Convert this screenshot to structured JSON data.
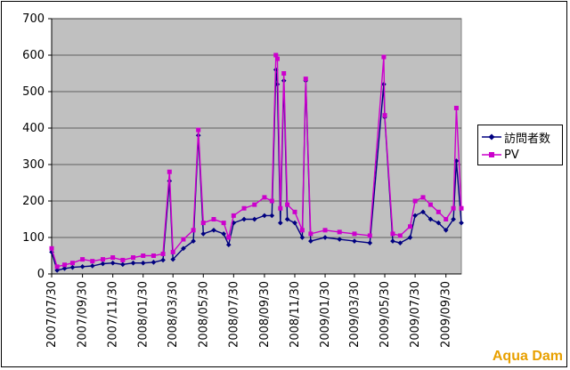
{
  "chart_data": {
    "type": "line",
    "title": "",
    "xlabel": "",
    "ylabel": "",
    "ylim": [
      0,
      700
    ],
    "yticks": [
      0,
      100,
      200,
      300,
      400,
      500,
      600,
      700
    ],
    "x_start": "2007/07/30",
    "x_end": "2009/10/31",
    "xticks": [
      "2007/07/30",
      "2007/09/30",
      "2007/11/30",
      "2008/01/30",
      "2008/03/30",
      "2008/05/30",
      "2008/07/30",
      "2008/09/30",
      "2008/11/30",
      "2009/01/30",
      "2009/03/30",
      "2009/05/30",
      "2009/07/30",
      "2009/09/30"
    ],
    "grid": true,
    "legend_position": "right",
    "plot_background": "#c0c0c0",
    "series": [
      {
        "name": "訪問者数",
        "color": "#000080",
        "marker": "diamond",
        "points": [
          [
            "2007/07/30",
            60
          ],
          [
            "2007/08/10",
            10
          ],
          [
            "2007/08/25",
            15
          ],
          [
            "2007/09/10",
            18
          ],
          [
            "2007/09/30",
            20
          ],
          [
            "2007/10/20",
            22
          ],
          [
            "2007/11/10",
            28
          ],
          [
            "2007/11/30",
            30
          ],
          [
            "2007/12/20",
            26
          ],
          [
            "2008/01/10",
            30
          ],
          [
            "2008/01/30",
            30
          ],
          [
            "2008/02/20",
            32
          ],
          [
            "2008/03/10",
            38
          ],
          [
            "2008/03/23",
            255
          ],
          [
            "2008/03/30",
            40
          ],
          [
            "2008/04/20",
            70
          ],
          [
            "2008/05/10",
            90
          ],
          [
            "2008/05/20",
            380
          ],
          [
            "2008/05/30",
            110
          ],
          [
            "2008/06/20",
            120
          ],
          [
            "2008/07/10",
            110
          ],
          [
            "2008/07/20",
            80
          ],
          [
            "2008/07/30",
            140
          ],
          [
            "2008/08/20",
            150
          ],
          [
            "2008/09/10",
            150
          ],
          [
            "2008/09/30",
            160
          ],
          [
            "2008/10/15",
            160
          ],
          [
            "2008/10/23",
            560
          ],
          [
            "2008/10/26",
            520
          ],
          [
            "2008/11/01",
            140
          ],
          [
            "2008/11/08",
            530
          ],
          [
            "2008/11/15",
            150
          ],
          [
            "2008/11/30",
            140
          ],
          [
            "2008/12/15",
            100
          ],
          [
            "2008/12/22",
            530
          ],
          [
            "2009/01/01",
            90
          ],
          [
            "2009/01/30",
            100
          ],
          [
            "2009/02/28",
            95
          ],
          [
            "2009/03/30",
            90
          ],
          [
            "2009/04/30",
            85
          ],
          [
            "2009/05/28",
            520
          ],
          [
            "2009/05/30",
            430
          ],
          [
            "2009/06/15",
            90
          ],
          [
            "2009/06/30",
            85
          ],
          [
            "2009/07/20",
            100
          ],
          [
            "2009/07/30",
            160
          ],
          [
            "2009/08/15",
            170
          ],
          [
            "2009/08/30",
            150
          ],
          [
            "2009/09/15",
            140
          ],
          [
            "2009/09/30",
            120
          ],
          [
            "2009/10/15",
            150
          ],
          [
            "2009/10/21",
            310
          ],
          [
            "2009/10/31",
            140
          ]
        ]
      },
      {
        "name": "PV",
        "color": "#cc00cc",
        "marker": "square",
        "points": [
          [
            "2007/07/30",
            70
          ],
          [
            "2007/08/10",
            20
          ],
          [
            "2007/08/25",
            25
          ],
          [
            "2007/09/10",
            30
          ],
          [
            "2007/09/30",
            40
          ],
          [
            "2007/10/20",
            35
          ],
          [
            "2007/11/10",
            40
          ],
          [
            "2007/11/30",
            45
          ],
          [
            "2007/12/20",
            38
          ],
          [
            "2008/01/10",
            45
          ],
          [
            "2008/01/30",
            50
          ],
          [
            "2008/02/20",
            50
          ],
          [
            "2008/03/10",
            55
          ],
          [
            "2008/03/23",
            280
          ],
          [
            "2008/03/30",
            60
          ],
          [
            "2008/04/20",
            95
          ],
          [
            "2008/05/10",
            120
          ],
          [
            "2008/05/20",
            395
          ],
          [
            "2008/05/30",
            140
          ],
          [
            "2008/06/20",
            150
          ],
          [
            "2008/07/10",
            140
          ],
          [
            "2008/07/20",
            100
          ],
          [
            "2008/07/30",
            160
          ],
          [
            "2008/08/20",
            180
          ],
          [
            "2008/09/10",
            190
          ],
          [
            "2008/09/30",
            210
          ],
          [
            "2008/10/15",
            200
          ],
          [
            "2008/10/23",
            600
          ],
          [
            "2008/10/26",
            590
          ],
          [
            "2008/11/01",
            180
          ],
          [
            "2008/11/08",
            550
          ],
          [
            "2008/11/15",
            190
          ],
          [
            "2008/11/30",
            170
          ],
          [
            "2008/12/15",
            120
          ],
          [
            "2008/12/22",
            535
          ],
          [
            "2009/01/01",
            110
          ],
          [
            "2009/01/30",
            120
          ],
          [
            "2009/02/28",
            115
          ],
          [
            "2009/03/30",
            110
          ],
          [
            "2009/04/30",
            105
          ],
          [
            "2009/05/28",
            595
          ],
          [
            "2009/05/30",
            435
          ],
          [
            "2009/06/15",
            110
          ],
          [
            "2009/06/30",
            105
          ],
          [
            "2009/07/20",
            130
          ],
          [
            "2009/07/30",
            200
          ],
          [
            "2009/08/15",
            210
          ],
          [
            "2009/08/30",
            190
          ],
          [
            "2009/09/15",
            170
          ],
          [
            "2009/09/30",
            150
          ],
          [
            "2009/10/15",
            180
          ],
          [
            "2009/10/21",
            455
          ],
          [
            "2009/10/31",
            180
          ]
        ]
      }
    ]
  },
  "watermark": {
    "text": "Aqua Dam",
    "color": "#e8a000"
  }
}
